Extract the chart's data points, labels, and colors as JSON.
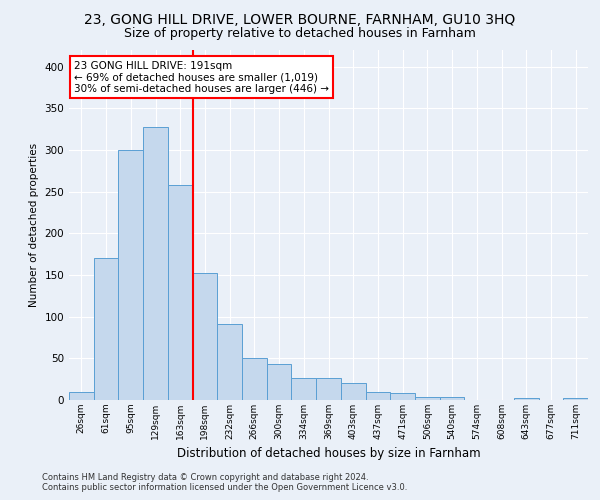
{
  "title": "23, GONG HILL DRIVE, LOWER BOURNE, FARNHAM, GU10 3HQ",
  "subtitle": "Size of property relative to detached houses in Farnham",
  "xlabel": "Distribution of detached houses by size in Farnham",
  "ylabel": "Number of detached properties",
  "footer_line1": "Contains HM Land Registry data © Crown copyright and database right 2024.",
  "footer_line2": "Contains public sector information licensed under the Open Government Licence v3.0.",
  "bar_labels": [
    "26sqm",
    "61sqm",
    "95sqm",
    "129sqm",
    "163sqm",
    "198sqm",
    "232sqm",
    "266sqm",
    "300sqm",
    "334sqm",
    "369sqm",
    "403sqm",
    "437sqm",
    "471sqm",
    "506sqm",
    "540sqm",
    "574sqm",
    "608sqm",
    "643sqm",
    "677sqm",
    "711sqm"
  ],
  "bar_values": [
    10,
    170,
    300,
    328,
    258,
    152,
    91,
    50,
    43,
    26,
    26,
    20,
    10,
    9,
    4,
    4,
    0,
    0,
    2,
    0,
    2
  ],
  "bar_color": "#c5d8ed",
  "bar_edge_color": "#5a9fd4",
  "vline_x": 4.5,
  "vline_color": "red",
  "annotation_text": "23 GONG HILL DRIVE: 191sqm\n← 69% of detached houses are smaller (1,019)\n30% of semi-detached houses are larger (446) →",
  "annotation_box_color": "white",
  "annotation_box_edge_color": "red",
  "ylim": [
    0,
    420
  ],
  "yticks": [
    0,
    50,
    100,
    150,
    200,
    250,
    300,
    350,
    400
  ],
  "bg_color": "#eaf0f8",
  "plot_bg_color": "#eaf0f8",
  "title_fontsize": 10,
  "subtitle_fontsize": 9
}
